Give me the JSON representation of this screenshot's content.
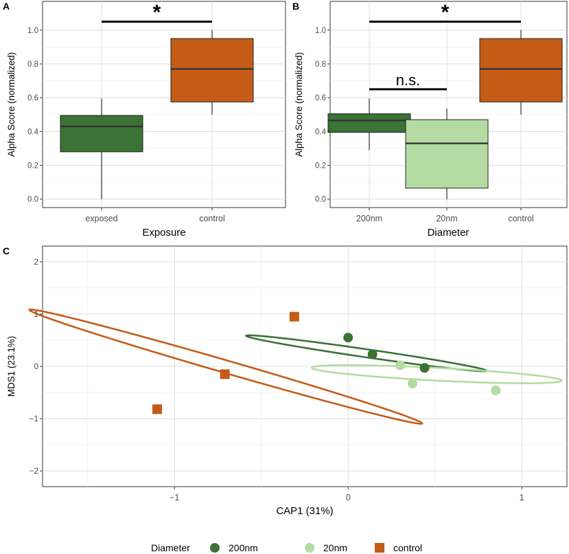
{
  "colors": {
    "exposed": "#3b7235",
    "d200": "#3b7235",
    "d20": "#b4dba2",
    "control": "#c45c18",
    "grid": "#dcdcdc",
    "whisker": "#000000",
    "median": "#333333"
  },
  "panel_labels": {
    "a": "A",
    "b": "B",
    "c": "C"
  },
  "legend": {
    "title": "Diameter",
    "items": [
      {
        "label": "200nm",
        "shape": "circle",
        "color": "#3b7235"
      },
      {
        "label": "20nm",
        "shape": "circle",
        "color": "#b4dba2"
      },
      {
        "label": "control",
        "shape": "square",
        "color": "#c45c18"
      }
    ]
  },
  "chart_data": [
    {
      "id": "A",
      "type": "box",
      "xlabel": "Exposure",
      "ylabel": "Alpha Score (normalized)",
      "ylim": [
        -0.05,
        1.17
      ],
      "yticks": [
        0.0,
        0.2,
        0.4,
        0.6,
        0.8,
        1.0
      ],
      "ytick_labels": [
        "0.0",
        "0.2",
        "0.4",
        "0.6",
        "0.8",
        "1.0"
      ],
      "categories": [
        "exposed",
        "control"
      ],
      "boxes": [
        {
          "category": "exposed",
          "min": 0.0,
          "q1": 0.28,
          "median": 0.43,
          "q3": 0.495,
          "max": 0.595,
          "color": "#3b7235"
        },
        {
          "category": "control",
          "min": 0.5,
          "q1": 0.575,
          "median": 0.77,
          "q3": 0.95,
          "max": 1.0,
          "color": "#c45c18"
        }
      ],
      "significance": [
        {
          "from": "exposed",
          "to": "control",
          "y": 1.05,
          "label": "*"
        }
      ]
    },
    {
      "id": "B",
      "type": "box",
      "xlabel": "Diameter",
      "ylabel": "Alpha Score (normalized)",
      "ylim": [
        -0.05,
        1.17
      ],
      "yticks": [
        0.0,
        0.2,
        0.4,
        0.6,
        0.8,
        1.0
      ],
      "ytick_labels": [
        "0.0",
        "0.2",
        "0.4",
        "0.6",
        "0.8",
        "1.0"
      ],
      "categories": [
        "200nm",
        "20nm",
        "control"
      ],
      "boxes": [
        {
          "category": "200nm",
          "min": 0.29,
          "q1": 0.395,
          "median": 0.465,
          "q3": 0.505,
          "max": 0.595,
          "color": "#3b7235"
        },
        {
          "category": "20nm",
          "min": 0.0,
          "q1": 0.065,
          "median": 0.33,
          "q3": 0.47,
          "max": 0.535,
          "color": "#b4dba2"
        },
        {
          "category": "control",
          "min": 0.5,
          "q1": 0.575,
          "median": 0.77,
          "q3": 0.95,
          "max": 1.0,
          "color": "#c45c18"
        }
      ],
      "significance": [
        {
          "from": "200nm",
          "to": "20nm",
          "y": 0.65,
          "label": "n.s."
        },
        {
          "from": "200nm",
          "to": "control",
          "y": 1.05,
          "label": "*"
        }
      ]
    },
    {
      "id": "C",
      "type": "scatter",
      "xlabel": "CAP1 (31%)",
      "ylabel": "MDS1 (23.1%)",
      "xlim": [
        -1.76,
        1.26
      ],
      "ylim": [
        -2.3,
        2.3
      ],
      "xticks": [
        -1,
        0,
        1
      ],
      "xtick_labels": [
        "−1",
        "0",
        "1"
      ],
      "xgrid": [
        -1.5,
        -1,
        -0.5,
        0,
        0.5,
        1
      ],
      "yticks": [
        -2,
        -1,
        0,
        1,
        2
      ],
      "ytick_labels": [
        "−2",
        "−1",
        "0",
        "1",
        "2"
      ],
      "ygrid": [
        -2,
        -1.5,
        -1,
        -0.5,
        0,
        0.5,
        1,
        1.5,
        2
      ],
      "series": [
        {
          "name": "200nm",
          "shape": "circle",
          "color": "#3b7235",
          "points": [
            [
              0.0,
              0.55
            ],
            [
              0.14,
              0.23
            ],
            [
              0.44,
              -0.03
            ]
          ],
          "ellipse": {
            "cx": 0.105,
            "cy": 0.25,
            "rx": 0.77,
            "ry": 0.07,
            "angle_deg": -26
          }
        },
        {
          "name": "20nm",
          "shape": "circle",
          "color": "#b4dba2",
          "points": [
            [
              0.3,
              0.02
            ],
            [
              0.37,
              -0.33
            ],
            [
              0.85,
              -0.46
            ]
          ],
          "ellipse": {
            "cx": 0.51,
            "cy": -0.15,
            "rx": 0.73,
            "ry": 0.12,
            "angle_deg": -10
          }
        },
        {
          "name": "control",
          "shape": "square",
          "color": "#c45c18",
          "points": [
            [
              -0.31,
              0.95
            ],
            [
              -0.71,
              -0.15
            ],
            [
              -1.1,
              -0.82
            ]
          ],
          "ellipse": {
            "cx": -0.705,
            "cy": -0.005,
            "rx": 1.57,
            "ry": 0.09,
            "angle_deg": -44
          }
        }
      ]
    }
  ]
}
